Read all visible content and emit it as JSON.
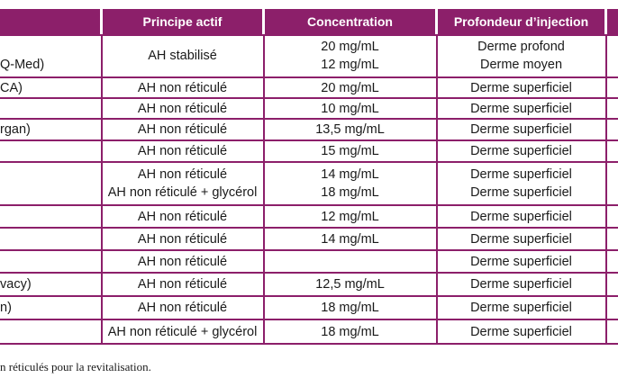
{
  "table": {
    "headers": [
      "",
      "Principe actif",
      "Concentration",
      "Profondeur d’injection",
      ""
    ],
    "rows": [
      {
        "product": [
          "",
          "Q-Med)"
        ],
        "active": [
          "AH stabilisé"
        ],
        "conc": [
          "20 mg/mL",
          "12 mg/mL"
        ],
        "depth": [
          "Derme profond",
          "Derme moyen"
        ]
      },
      {
        "product": [
          "CA)"
        ],
        "active": [
          "AH non réticulé"
        ],
        "conc": [
          "20 mg/mL"
        ],
        "depth": [
          "Derme superficiel"
        ]
      },
      {
        "product": [
          ""
        ],
        "active": [
          "AH non réticulé"
        ],
        "conc": [
          "10 mg/mL"
        ],
        "depth": [
          "Derme superficiel"
        ]
      },
      {
        "product": [
          "rgan)"
        ],
        "active": [
          "AH non réticulé"
        ],
        "conc": [
          "13,5 mg/mL"
        ],
        "depth": [
          "Derme superficiel"
        ]
      },
      {
        "product": [
          ""
        ],
        "active": [
          "AH non réticulé"
        ],
        "conc": [
          "15 mg/mL"
        ],
        "depth": [
          "Derme superficiel"
        ]
      },
      {
        "product": [
          "",
          ""
        ],
        "active": [
          "AH non réticulé",
          "AH non réticulé + glycérol"
        ],
        "conc": [
          "14 mg/mL",
          "18 mg/mL"
        ],
        "depth": [
          "Derme superficiel",
          "Derme superficiel"
        ]
      },
      {
        "product": [
          ""
        ],
        "active": [
          "AH non réticulé"
        ],
        "conc": [
          "12 mg/mL"
        ],
        "depth": [
          "Derme superficiel"
        ]
      },
      {
        "product": [
          ""
        ],
        "active": [
          "AH non réticulé"
        ],
        "conc": [
          "14 mg/mL"
        ],
        "depth": [
          "Derme superficiel"
        ]
      },
      {
        "product": [
          ""
        ],
        "active": [
          "AH non réticulé"
        ],
        "conc": [
          ""
        ],
        "depth": [
          "Derme superficiel"
        ]
      },
      {
        "product": [
          "vacy)"
        ],
        "active": [
          "AH non réticulé"
        ],
        "conc": [
          "12,5 mg/mL"
        ],
        "depth": [
          "Derme superficiel"
        ]
      },
      {
        "product": [
          "n)"
        ],
        "active": [
          "AH non réticulé"
        ],
        "conc": [
          "18 mg/mL"
        ],
        "depth": [
          "Derme superficiel"
        ]
      },
      {
        "product": [
          ""
        ],
        "active": [
          "AH non réticulé + glycérol"
        ],
        "conc": [
          "18 mg/mL"
        ],
        "depth": [
          "Derme superficiel"
        ]
      }
    ]
  },
  "footnote": "n réticulés pour la revitalisation.",
  "colors": {
    "accent": "#8c1f6a",
    "header_text": "#ffffff"
  }
}
